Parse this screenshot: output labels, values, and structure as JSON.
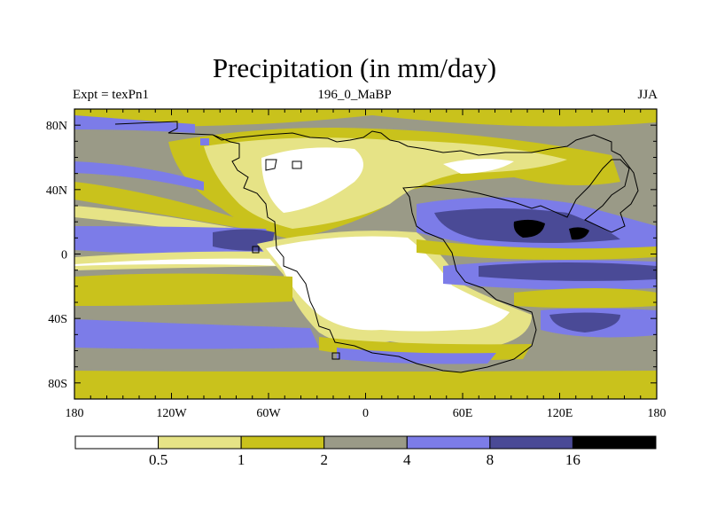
{
  "title": "Precipitation (in mm/day)",
  "subtitle_left": "Expt = texPn1",
  "subtitle_center": "196_0_MaBP",
  "subtitle_right": "JJA",
  "lat_ticks": [
    "80N",
    "40N",
    "0",
    "40S",
    "80S"
  ],
  "lon_ticks": [
    "180",
    "120W",
    "60W",
    "0",
    "60E",
    "120E",
    "180"
  ],
  "colorbar": {
    "colors": [
      "#ffffff",
      "#e6e386",
      "#c9c21c",
      "#9a9a87",
      "#7c7ce8",
      "#4a4a96",
      "#000000"
    ],
    "labels": [
      "0.5",
      "1",
      "2",
      "4",
      "8",
      "16"
    ]
  }
}
